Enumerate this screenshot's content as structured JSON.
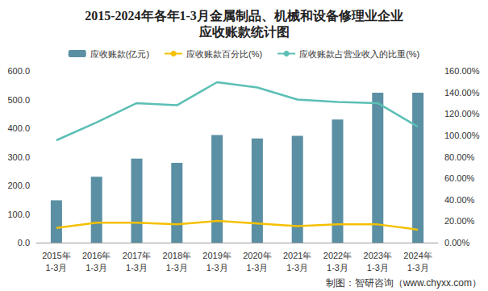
{
  "chart_data": {
    "type": "bar",
    "title": "2015-2024年各年1-3月金属制品、机械和设备修理业企业\n应收账款统计图",
    "categories": [
      "2015年\n1-3月",
      "2016年\n1-3月",
      "2017年\n1-3月",
      "2018年\n1-3月",
      "2019年\n1-3月",
      "2020年\n1-3月",
      "2021年\n1-3月",
      "2022年\n1-3月",
      "2023年\n1-3月",
      "2024年\n1-3月"
    ],
    "series": [
      {
        "name": "应收账款(亿元)",
        "type": "bar",
        "color": "#5b8fa3",
        "values": [
          148,
          230,
          294,
          279,
          376,
          364,
          373,
          430,
          524,
          524
        ]
      },
      {
        "name": "应收账款百分比(%)",
        "type": "line",
        "axis": "y2",
        "color": "#f5c000",
        "marker": "none",
        "values": [
          13.7,
          18.6,
          18.6,
          17.0,
          20.2,
          17.8,
          15.4,
          17.0,
          17.0,
          12.1
        ]
      },
      {
        "name": "应收账款占营业收入的比重(%)",
        "type": "line",
        "axis": "y2",
        "color": "#5bbfb5",
        "marker": "none",
        "values": [
          95.4,
          112.0,
          130.0,
          128.0,
          149.5,
          144.6,
          133.3,
          131.0,
          130.0,
          108.0
        ]
      }
    ],
    "ylim": [
      0,
      600
    ],
    "yticks": [
      {
        "value": 0,
        "label": "0.0"
      },
      {
        "value": 100,
        "label": "100.0"
      },
      {
        "value": 200,
        "label": "200.0"
      },
      {
        "value": 300,
        "label": "300.0"
      },
      {
        "value": 400,
        "label": "400.0"
      },
      {
        "value": 500,
        "label": "500.0"
      },
      {
        "value": 600,
        "label": "600.0"
      }
    ],
    "y2lim": [
      0,
      160
    ],
    "y2ticks": [
      {
        "value": 0,
        "label": "0.00%"
      },
      {
        "value": 20,
        "label": "20.00%"
      },
      {
        "value": 40,
        "label": "40.00%"
      },
      {
        "value": 60,
        "label": "60.00%"
      },
      {
        "value": 80,
        "label": "80.00%"
      },
      {
        "value": 100,
        "label": "100.00%"
      },
      {
        "value": 120,
        "label": "120.00%"
      },
      {
        "value": 140,
        "label": "140.00%"
      },
      {
        "value": 160,
        "label": "160.00%"
      }
    ],
    "grid": false,
    "legend": "top",
    "annotations": [
      "制图：智研咨询（www.chyxx.com）"
    ]
  }
}
